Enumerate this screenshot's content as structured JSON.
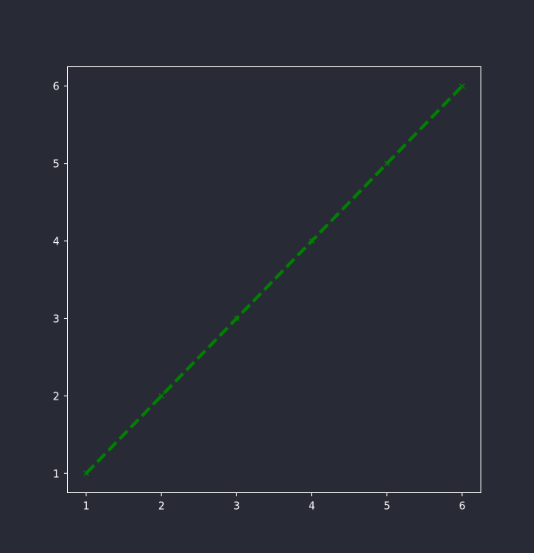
{
  "chart_data": {
    "type": "line",
    "title": "",
    "xlabel": "",
    "ylabel": "",
    "xlim": [
      0.75,
      6.25
    ],
    "ylim": [
      0.75,
      6.25
    ],
    "xticks": [
      "1",
      "2",
      "3",
      "4",
      "5",
      "6"
    ],
    "yticks": [
      "1",
      "2",
      "3",
      "4",
      "5",
      "6"
    ],
    "grid": false,
    "legend": "none",
    "series": [
      {
        "x": [
          1,
          2,
          3,
          4,
          5,
          6
        ],
        "y": [
          1,
          2,
          3,
          4,
          5,
          6
        ],
        "color": "#008000",
        "linestyle": "dashed",
        "marker": "x"
      }
    ]
  },
  "colors": {
    "background": "#282a36",
    "axes_frame": "#ffffff",
    "tick_text": "#ffffff",
    "series": "#008000"
  }
}
